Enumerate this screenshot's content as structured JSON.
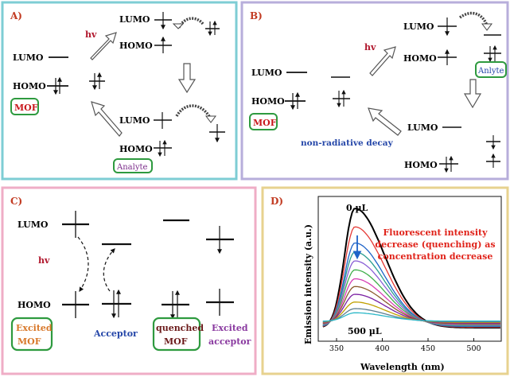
{
  "colors": {
    "panel_a_border": "#7ecdd4",
    "panel_b_border": "#b7aedb",
    "panel_c_border": "#efadc6",
    "panel_d_border": "#e7d28f",
    "highlight_box": "#2e9a3f",
    "mof_red": "#c8171c",
    "analyte_purple": "#7b2c8a",
    "acceptor_blue": "#2446a8",
    "excited_mof_orange": "#d8782a",
    "hv_red": "#b0162c",
    "annotation_red": "#e0231a"
  },
  "panel_a": {
    "label": "A)",
    "hv": "hv",
    "lumo": "LUMO",
    "homo": "HOMO",
    "mof_label": "MOF",
    "analyte_label": "Analyte"
  },
  "panel_b": {
    "label": "B)",
    "hv": "hv",
    "lumo": "LUMO",
    "homo": "HOMO",
    "mof_label": "MOF",
    "analyte_label": "Anlyte",
    "non_radiative": "non-radiative decay"
  },
  "panel_c": {
    "label": "C)",
    "hv": "hv",
    "lumo": "LUMO",
    "homo": "HOMO",
    "excited_mof": [
      "Excited",
      "MOF"
    ],
    "acceptor": "Acceptor",
    "quenched_mof": [
      "quenched",
      "MOF"
    ],
    "excited_acceptor": [
      "Excited",
      "acceptor"
    ]
  },
  "panel_d": {
    "label": "D)",
    "top_label": "0 µL",
    "bottom_label": "500 µL",
    "annotation": [
      "Fluorescent intensity",
      "decrease (quenching) as",
      "concentration decrease"
    ]
  },
  "chart_data": {
    "type": "line",
    "xlabel": "Wavelength (nm)",
    "ylabel": "Emission intensity (a.u.)",
    "xlim": [
      330,
      530
    ],
    "ylim": [
      0,
      1
    ],
    "xticks": [
      350,
      400,
      450,
      500
    ],
    "peak_nm": 370,
    "series": [
      {
        "values": [
          1.0
        ],
        "color": "#000000"
      },
      {
        "values": [
          0.84
        ],
        "color": "#e53935"
      },
      {
        "values": [
          0.7
        ],
        "color": "#1e63c8"
      },
      {
        "values": [
          0.62
        ],
        "color": "#2a9d8f"
      },
      {
        "values": [
          0.54
        ],
        "color": "#8a5fd6"
      },
      {
        "values": [
          0.46
        ],
        "color": "#3fae4a"
      },
      {
        "values": [
          0.38
        ],
        "color": "#d63fb5"
      },
      {
        "values": [
          0.31
        ],
        "color": "#8b5a2b"
      },
      {
        "values": [
          0.24
        ],
        "color": "#7a1fa2"
      },
      {
        "values": [
          0.17
        ],
        "color": "#c0a000"
      },
      {
        "values": [
          0.11
        ],
        "color": "#5d7d8e"
      },
      {
        "values": [
          0.07
        ],
        "color": "#2bb8c8"
      }
    ]
  }
}
